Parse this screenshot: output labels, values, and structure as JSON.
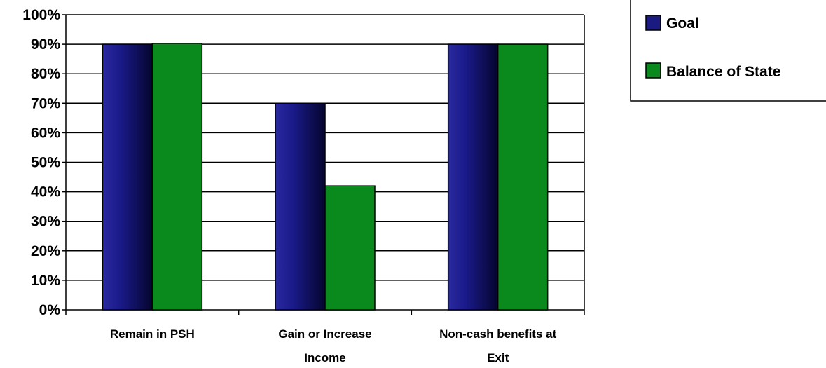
{
  "chart_data": {
    "type": "bar",
    "categories": [
      [
        "Remain in PSH"
      ],
      [
        "Gain or Increase",
        "Income"
      ],
      [
        "Non-cash benefits at",
        "Exit"
      ]
    ],
    "series": [
      {
        "name": "Goal",
        "values": [
          90,
          70,
          90
        ]
      },
      {
        "name": "Balance of State",
        "values": [
          90.3,
          42,
          90
        ]
      }
    ],
    "y_ticks": [
      "0%",
      "10%",
      "20%",
      "30%",
      "40%",
      "50%",
      "60%",
      "70%",
      "80%",
      "90%",
      "100%"
    ],
    "ylim": [
      0,
      100
    ],
    "grid": true,
    "legend_position": "top-right",
    "colors": {
      "Goal": "#1a1a80",
      "Balance of State": "#0a8a1c"
    }
  }
}
